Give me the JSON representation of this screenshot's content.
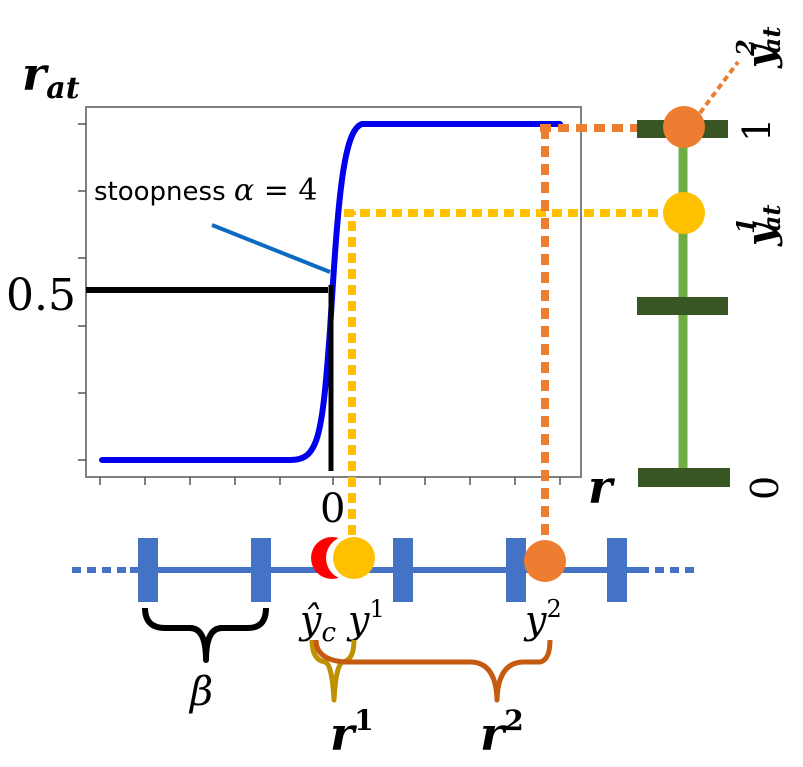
{
  "plot": {
    "y_axis_label": "r",
    "y_axis_label_sub": "at",
    "x_axis_label": "r",
    "half_level_label": "0.5",
    "zero_label": "0",
    "annotation_prefix": "stoopness ",
    "annotation_symbol": "α",
    "annotation_suffix": " = 4"
  },
  "right_scale": {
    "top_tick_label": "1",
    "bottom_tick_label": "0",
    "y1_label": "y",
    "y1_sup": "1",
    "y1_sub": "at",
    "y2_label": "y",
    "y2_sup": "2",
    "y2_sub": "at"
  },
  "bottom_line": {
    "yc_hat_base": "ŷ",
    "yc_hat_sub": "c",
    "y1_base": "y",
    "y1_sup": "1",
    "y2_base": "y",
    "y2_sup": "2",
    "beta_label": "β",
    "r1_base": "r",
    "r1_sup": "1",
    "r2_base": "r",
    "r2_sup": "2"
  },
  "colors": {
    "curve": "#0000ee",
    "annotation_line": "#0b6bc0",
    "black": "#000000",
    "y1_point": "#ffc000",
    "y2_point": "#ed7d31",
    "yc_point": "#ff0000",
    "number_line": "#4472c4",
    "scale_bar": "#70ad47",
    "scale_ticks": "#375623",
    "r1_brace": "#bf9000",
    "r2_brace": "#c55a11"
  }
}
